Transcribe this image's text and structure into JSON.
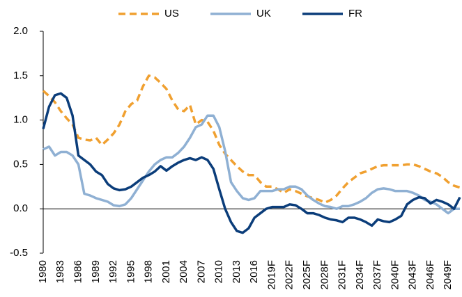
{
  "chart_data": {
    "type": "line",
    "categories": [
      "1980",
      null,
      null,
      "1983",
      null,
      null,
      "1986",
      null,
      null,
      "1989",
      null,
      null,
      "1992",
      null,
      null,
      "1995",
      null,
      null,
      "1998",
      null,
      null,
      "2001",
      null,
      null,
      "2004",
      null,
      null,
      "2007",
      null,
      null,
      "2010",
      null,
      null,
      "2013",
      null,
      null,
      "2016",
      null,
      null,
      "2019F",
      null,
      null,
      "2022F",
      null,
      null,
      "2025F",
      null,
      null,
      "2028F",
      null,
      null,
      "2031F",
      null,
      null,
      "2034F",
      null,
      null,
      "2037F",
      null,
      null,
      "2040F",
      null,
      null,
      "2043F",
      null,
      null,
      "2046F",
      null,
      null,
      "2049F",
      null,
      null
    ],
    "series": [
      {
        "name": "US",
        "color": "#f0a030",
        "dashed": true,
        "values": [
          1.33,
          1.27,
          1.2,
          1.1,
          1.02,
          0.95,
          0.8,
          0.78,
          0.77,
          0.8,
          0.72,
          0.78,
          0.85,
          0.95,
          1.1,
          1.18,
          1.22,
          1.38,
          1.5,
          1.48,
          1.42,
          1.35,
          1.22,
          1.12,
          1.1,
          1.17,
          0.95,
          1.0,
          0.98,
          0.88,
          0.72,
          0.62,
          0.55,
          0.48,
          0.42,
          0.38,
          0.38,
          0.3,
          0.25,
          0.25,
          0.22,
          0.18,
          0.22,
          0.2,
          0.17,
          0.14,
          0.12,
          0.1,
          0.07,
          0.1,
          0.15,
          0.23,
          0.3,
          0.35,
          0.4,
          0.42,
          0.45,
          0.48,
          0.49,
          0.49,
          0.49,
          0.49,
          0.5,
          0.5,
          0.48,
          0.45,
          0.42,
          0.4,
          0.36,
          0.3,
          0.26,
          0.24
        ]
      },
      {
        "name": "UK",
        "color": "#8fb0d3",
        "dashed": false,
        "values": [
          0.67,
          0.7,
          0.6,
          0.64,
          0.64,
          0.6,
          0.5,
          0.17,
          0.15,
          0.12,
          0.1,
          0.08,
          0.04,
          0.03,
          0.05,
          0.12,
          0.22,
          0.32,
          0.42,
          0.5,
          0.55,
          0.58,
          0.58,
          0.63,
          0.7,
          0.8,
          0.92,
          0.95,
          1.05,
          1.05,
          0.92,
          0.65,
          0.3,
          0.2,
          0.12,
          0.1,
          0.12,
          0.2,
          0.2,
          0.2,
          0.22,
          0.22,
          0.25,
          0.25,
          0.22,
          0.15,
          0.1,
          0.06,
          0.03,
          0.02,
          0.0,
          0.03,
          0.03,
          0.05,
          0.08,
          0.12,
          0.18,
          0.22,
          0.23,
          0.22,
          0.2,
          0.2,
          0.2,
          0.18,
          0.15,
          0.1,
          0.08,
          0.05,
          0.0,
          -0.05,
          0.0,
          0.0
        ]
      },
      {
        "name": "FR",
        "color": "#0b3d7a",
        "dashed": false,
        "values": [
          0.9,
          1.15,
          1.28,
          1.3,
          1.25,
          1.05,
          0.6,
          0.55,
          0.5,
          0.42,
          0.38,
          0.28,
          0.23,
          0.21,
          0.22,
          0.25,
          0.3,
          0.35,
          0.38,
          0.42,
          0.48,
          0.43,
          0.48,
          0.52,
          0.55,
          0.57,
          0.55,
          0.58,
          0.55,
          0.45,
          0.22,
          0.0,
          -0.15,
          -0.25,
          -0.27,
          -0.22,
          -0.1,
          -0.05,
          0.0,
          0.02,
          0.02,
          0.02,
          0.05,
          0.04,
          0.0,
          -0.05,
          -0.05,
          -0.07,
          -0.1,
          -0.12,
          -0.13,
          -0.15,
          -0.1,
          -0.1,
          -0.12,
          -0.15,
          -0.19,
          -0.12,
          -0.14,
          -0.15,
          -0.12,
          -0.08,
          0.05,
          0.1,
          0.13,
          0.12,
          0.06,
          0.1,
          0.08,
          0.05,
          0.0,
          0.13
        ]
      }
    ],
    "ylim": [
      -0.5,
      2.0
    ],
    "yticks": [
      -0.5,
      {
        "value": 0,
        "label": "0.0"
      },
      0.5,
      {
        "value": 1,
        "label": "1.0"
      },
      1.5,
      {
        "value": 2,
        "label": "2.0"
      }
    ],
    "legend": "top"
  }
}
